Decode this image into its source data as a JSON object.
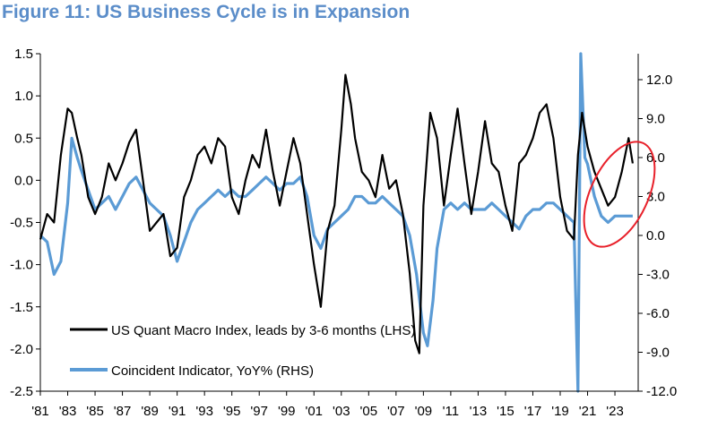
{
  "figure_title": "Figure 11: US Business Cycle is in Expansion",
  "colors": {
    "title": "#5b8dc9",
    "quant_macro_line": "#000000",
    "coincident_line": "#5b9bd5",
    "highlight_ellipse": "#e8202a",
    "axis": "#000000"
  },
  "chart_data": {
    "type": "line",
    "title": "",
    "xlabel": "",
    "ylabel": "",
    "x_tick_labels": [
      "'81",
      "'83",
      "'85",
      "'87",
      "'89",
      "'91",
      "'93",
      "'95",
      "'97",
      "'99",
      "'01",
      "'03",
      "'05",
      "'07",
      "'09",
      "'11",
      "'13",
      "'15",
      "'17",
      "'19",
      "'21",
      "'23"
    ],
    "x_tick_years": [
      1981,
      1983,
      1985,
      1987,
      1989,
      1991,
      1993,
      1995,
      1997,
      1999,
      2001,
      2003,
      2005,
      2007,
      2009,
      2011,
      2013,
      2015,
      2017,
      2019,
      2021,
      2023
    ],
    "xlim": [
      1981,
      2024.7
    ],
    "left_axis": {
      "ylim": [
        -2.5,
        1.5
      ],
      "tick_labels": [
        "1.5",
        "1.0",
        "0.5",
        "0.0",
        "-0.5",
        "-1.0",
        "-1.5",
        "-2.0",
        "-2.5"
      ],
      "tick_values": [
        1.5,
        1.0,
        0.5,
        0.0,
        -0.5,
        -1.0,
        -1.5,
        -2.0,
        -2.5
      ]
    },
    "right_axis": {
      "ylim": [
        -12.0,
        14.0
      ],
      "tick_labels": [
        "12.0",
        "9.0",
        "6.0",
        "3.0",
        "0.0",
        "-3.0",
        "-6.0",
        "-9.0",
        "-12.0"
      ],
      "tick_values": [
        12,
        9,
        6,
        3,
        0,
        -3,
        -6,
        -9,
        -12
      ]
    },
    "legend_placement": "bottom-center",
    "annotation": "red ellipse highlighting 2021-2024",
    "series": [
      {
        "name": "US Quant Macro Index, leads by 3-6 months (LHS)",
        "axis": "left",
        "x": [
          1981.0,
          1981.5,
          1982.0,
          1982.5,
          1983.0,
          1983.3,
          1983.7,
          1984.0,
          1984.5,
          1985.0,
          1985.5,
          1986.0,
          1986.5,
          1987.0,
          1987.5,
          1988.0,
          1988.5,
          1989.0,
          1989.5,
          1990.0,
          1990.5,
          1991.0,
          1991.5,
          1992.0,
          1992.5,
          1993.0,
          1993.5,
          1994.0,
          1994.5,
          1995.0,
          1995.5,
          1996.0,
          1996.5,
          1997.0,
          1997.5,
          1998.0,
          1998.5,
          1999.0,
          1999.5,
          2000.0,
          2000.5,
          2001.0,
          2001.5,
          2002.0,
          2002.5,
          2003.0,
          2003.3,
          2003.7,
          2004.0,
          2004.5,
          2005.0,
          2005.5,
          2006.0,
          2006.5,
          2007.0,
          2007.5,
          2008.0,
          2008.4,
          2008.7,
          2009.0,
          2009.5,
          2010.0,
          2010.5,
          2011.0,
          2011.5,
          2012.0,
          2012.5,
          2013.0,
          2013.5,
          2014.0,
          2014.5,
          2015.0,
          2015.5,
          2016.0,
          2016.5,
          2017.0,
          2017.5,
          2018.0,
          2018.5,
          2019.0,
          2019.5,
          2020.0,
          2020.3,
          2020.6,
          2021.0,
          2021.5,
          2022.0,
          2022.5,
          2023.0,
          2023.5,
          2024.0,
          2024.3
        ],
        "values": [
          -0.7,
          -0.4,
          -0.5,
          0.3,
          0.85,
          0.8,
          0.5,
          0.3,
          -0.2,
          -0.4,
          -0.2,
          0.2,
          0.0,
          0.2,
          0.45,
          0.6,
          0.0,
          -0.6,
          -0.5,
          -0.4,
          -0.9,
          -0.8,
          -0.2,
          0.0,
          0.3,
          0.4,
          0.2,
          0.5,
          0.4,
          -0.2,
          -0.4,
          0.0,
          0.3,
          0.15,
          0.6,
          0.1,
          -0.3,
          0.1,
          0.5,
          0.2,
          -0.4,
          -1.0,
          -1.5,
          -0.6,
          -0.3,
          0.6,
          1.25,
          0.9,
          0.5,
          0.1,
          0.0,
          -0.2,
          0.3,
          -0.1,
          0.0,
          -0.4,
          -1.1,
          -1.9,
          -2.05,
          -0.3,
          0.8,
          0.5,
          -0.3,
          0.3,
          0.85,
          0.2,
          -0.4,
          0.1,
          0.7,
          0.2,
          0.1,
          -0.3,
          -0.6,
          0.2,
          0.3,
          0.5,
          0.8,
          0.9,
          0.5,
          -0.2,
          -0.6,
          -0.7,
          0.3,
          0.8,
          0.4,
          0.1,
          -0.1,
          -0.3,
          -0.2,
          0.1,
          0.5,
          0.2
        ]
      },
      {
        "name": "Coincident Indicator, YoY% (RHS)",
        "axis": "right",
        "x": [
          1981.0,
          1981.5,
          1982.0,
          1982.5,
          1983.0,
          1983.3,
          1983.7,
          1984.0,
          1984.5,
          1985.0,
          1985.5,
          1986.0,
          1986.5,
          1987.0,
          1987.5,
          1988.0,
          1988.5,
          1989.0,
          1989.5,
          1990.0,
          1990.5,
          1991.0,
          1991.5,
          1992.0,
          1992.5,
          1993.0,
          1993.5,
          1994.0,
          1994.5,
          1995.0,
          1995.5,
          1996.0,
          1996.5,
          1997.0,
          1997.5,
          1998.0,
          1998.5,
          1999.0,
          1999.5,
          2000.0,
          2000.5,
          2001.0,
          2001.5,
          2002.0,
          2002.5,
          2003.0,
          2003.5,
          2004.0,
          2004.5,
          2005.0,
          2005.5,
          2006.0,
          2006.5,
          2007.0,
          2007.5,
          2008.0,
          2008.5,
          2009.0,
          2009.3,
          2009.7,
          2010.0,
          2010.5,
          2011.0,
          2011.5,
          2012.0,
          2012.5,
          2013.0,
          2013.5,
          2014.0,
          2014.5,
          2015.0,
          2015.5,
          2016.0,
          2016.5,
          2017.0,
          2017.5,
          2018.0,
          2018.5,
          2019.0,
          2019.5,
          2020.0,
          2020.3,
          2020.5,
          2020.8,
          2021.0,
          2021.5,
          2022.0,
          2022.5,
          2023.0,
          2023.5,
          2024.0,
          2024.3
        ],
        "values": [
          0.0,
          -0.5,
          -3.0,
          -2.0,
          2.5,
          7.5,
          6.0,
          5.0,
          3.5,
          2.0,
          2.5,
          3.0,
          2.0,
          3.0,
          4.0,
          4.5,
          3.5,
          2.5,
          2.0,
          1.5,
          0.0,
          -2.0,
          -0.5,
          1.0,
          2.0,
          2.5,
          3.0,
          3.5,
          3.0,
          3.5,
          3.0,
          3.0,
          3.5,
          4.0,
          4.5,
          4.0,
          3.5,
          4.0,
          4.0,
          4.5,
          3.0,
          0.0,
          -1.0,
          0.5,
          1.0,
          1.5,
          2.0,
          3.0,
          3.0,
          2.5,
          2.5,
          3.0,
          2.5,
          2.0,
          1.5,
          0.0,
          -3.0,
          -7.5,
          -8.5,
          -5.0,
          -1.0,
          2.0,
          2.5,
          2.0,
          2.5,
          2.0,
          2.0,
          2.0,
          2.5,
          2.0,
          1.5,
          1.0,
          0.5,
          1.5,
          2.0,
          2.0,
          2.5,
          2.5,
          2.0,
          1.5,
          1.0,
          -12.0,
          14.0,
          6.0,
          5.5,
          3.0,
          1.5,
          1.0,
          1.5,
          1.5,
          1.5,
          1.5
        ]
      }
    ]
  }
}
